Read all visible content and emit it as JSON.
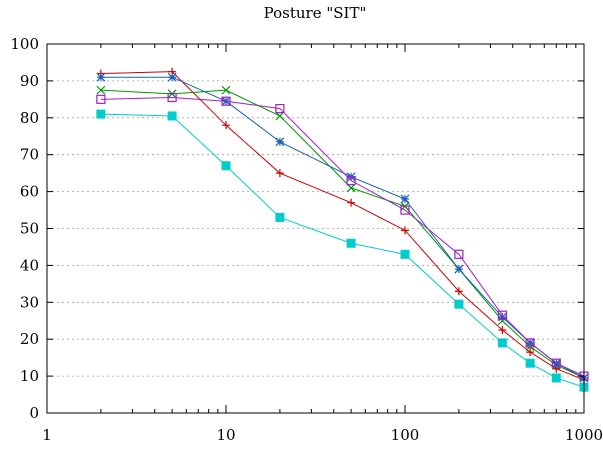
{
  "chart_data": {
    "type": "line",
    "title": "Posture \"SIT\"",
    "xlabel": "",
    "ylabel": "",
    "xscale": "log",
    "xlim": [
      1,
      1000
    ],
    "ylim": [
      0,
      100
    ],
    "grid": "horizontal dotted",
    "legend": "none",
    "x_ticks": [
      {
        "value": 1,
        "label": "1"
      },
      {
        "value": 10,
        "label": "10"
      },
      {
        "value": 100,
        "label": "100"
      },
      {
        "value": 1000,
        "label": "1000"
      }
    ],
    "y_ticks": [
      0,
      10,
      20,
      30,
      40,
      50,
      60,
      70,
      80,
      90,
      100
    ],
    "y_tick_labels": [
      "0",
      "10",
      "20",
      "30",
      "40",
      "50",
      "60",
      "70",
      "80",
      "90",
      "100"
    ],
    "series": [
      {
        "color": "#cc0000",
        "marker": "plus",
        "x": [
          2,
          5,
          10,
          20,
          50,
          100,
          200,
          350,
          500,
          700,
          1000
        ],
        "values": [
          92,
          92.5,
          78,
          65,
          57,
          49.5,
          33,
          22.5,
          16.5,
          12,
          9
        ]
      },
      {
        "color": "#009900",
        "marker": "x",
        "x": [
          2,
          5,
          10,
          20,
          50,
          100,
          200,
          350,
          500,
          700,
          1000
        ],
        "values": [
          87.5,
          86.5,
          87.5,
          80.5,
          61,
          56,
          39,
          25,
          18,
          13,
          9.5
        ]
      },
      {
        "color": "#1a5fb4",
        "marker": "star",
        "x": [
          2,
          5,
          10,
          20,
          50,
          100,
          200,
          350,
          500,
          700,
          1000
        ],
        "values": [
          91,
          91,
          84.5,
          73.5,
          64,
          58,
          39,
          26,
          19,
          13.5,
          9.5
        ]
      },
      {
        "color": "#a020c0",
        "marker": "open-square",
        "x": [
          2,
          5,
          10,
          20,
          50,
          100,
          200,
          350,
          500,
          700,
          1000
        ],
        "values": [
          85,
          85.5,
          84.5,
          82.5,
          63,
          55,
          43,
          26.5,
          19,
          13.5,
          10
        ]
      },
      {
        "color": "#00cccc",
        "marker": "filled-square",
        "x": [
          2,
          5,
          10,
          20,
          50,
          100,
          200,
          350,
          500,
          700,
          1000
        ],
        "values": [
          81,
          80.5,
          67,
          53,
          46,
          43,
          29.5,
          19,
          13.5,
          9.5,
          7
        ]
      }
    ]
  }
}
